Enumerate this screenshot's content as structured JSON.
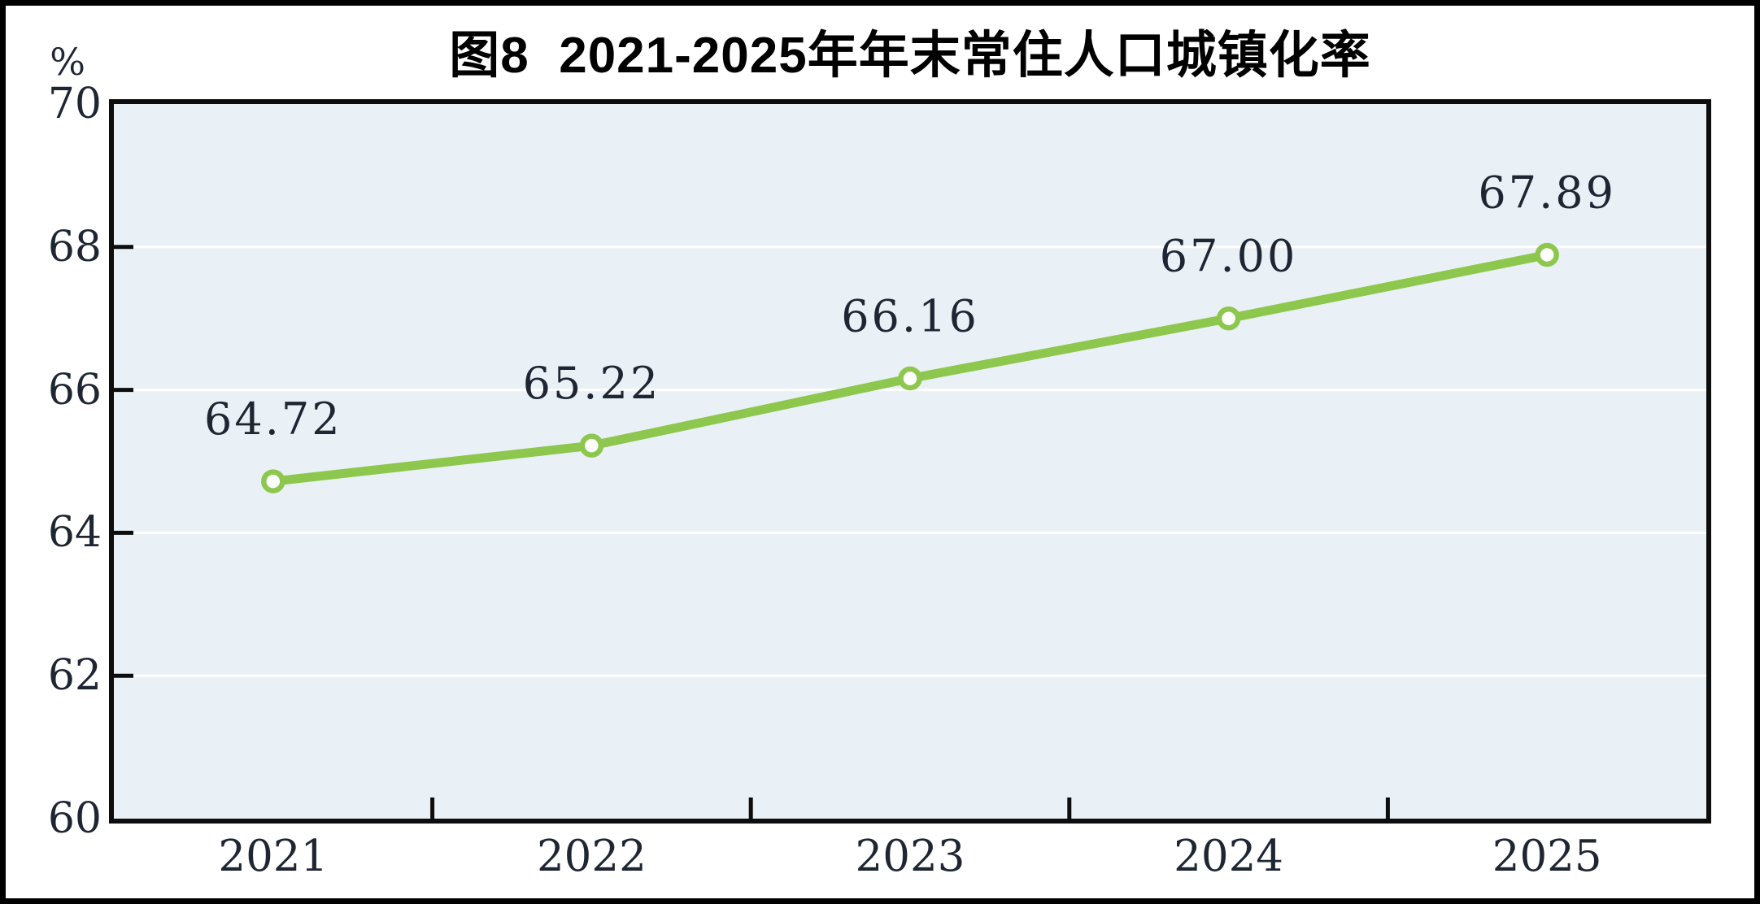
{
  "chart_data": {
    "type": "line",
    "title": "图8  2021-2025年年末常住人口城镇化率",
    "unit_label": "%",
    "categories": [
      "2021",
      "2022",
      "2023",
      "2024",
      "2025"
    ],
    "values": [
      64.72,
      65.22,
      66.16,
      67.0,
      67.89
    ],
    "data_labels": [
      "64.72",
      "65.22",
      "66.16",
      "67.00",
      "67.89"
    ],
    "ylim": [
      60,
      70
    ],
    "yticks": [
      60,
      62,
      64,
      66,
      68,
      70
    ],
    "y_tick_labels": [
      "60",
      "62",
      "64",
      "66",
      "68",
      "70"
    ],
    "xlabel": "",
    "ylabel": "%",
    "grid": "horizontal-white",
    "legend": "none",
    "colors": {
      "line": "#8dc74d",
      "marker_fill": "#ffffff",
      "marker_ring": "#8dc74d",
      "plot_background": "#eaf1f6",
      "gridline": "#ffffff",
      "axis": "#0d0d0d",
      "label_text": "#1f2633",
      "title_text": "#000000"
    }
  }
}
